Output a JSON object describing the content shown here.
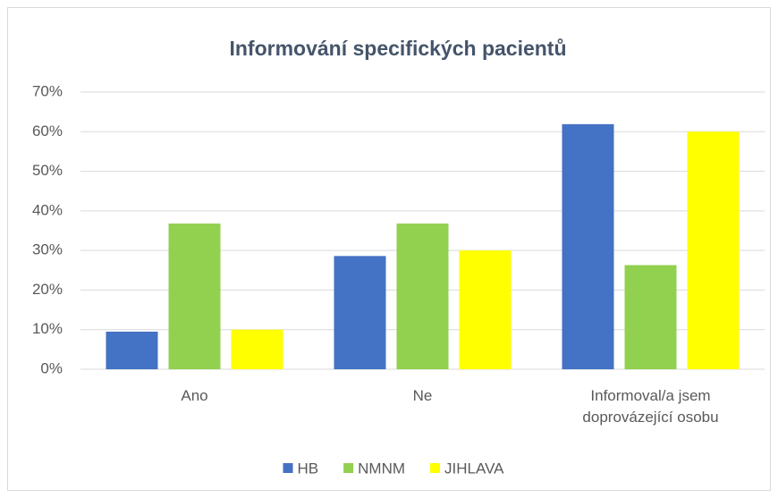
{
  "chart_data": {
    "type": "bar",
    "title": "Informování specifických pacientů",
    "categories": [
      "Ano",
      "Ne",
      "Informoval/a jsem doprovázející osobu"
    ],
    "series": [
      {
        "name": "HB",
        "color": "#4472c4",
        "values": [
          9.5,
          28.6,
          61.9
        ]
      },
      {
        "name": "NMNM",
        "color": "#92d050",
        "values": [
          36.8,
          36.8,
          26.3
        ]
      },
      {
        "name": "JIHLAVA",
        "color": "#ffff00",
        "values": [
          10,
          30,
          60
        ]
      }
    ],
    "ylim": [
      0,
      70
    ],
    "yticks": [
      {
        "value": 0,
        "label": "0%"
      },
      {
        "value": 10,
        "label": "10%"
      },
      {
        "value": 20,
        "label": "20%"
      },
      {
        "value": 30,
        "label": "30%"
      },
      {
        "value": 40,
        "label": "40%"
      },
      {
        "value": 50,
        "label": "50%"
      },
      {
        "value": 60,
        "label": "60%"
      },
      {
        "value": 70,
        "label": "70%"
      }
    ],
    "grid": true,
    "legend": "bottom"
  }
}
